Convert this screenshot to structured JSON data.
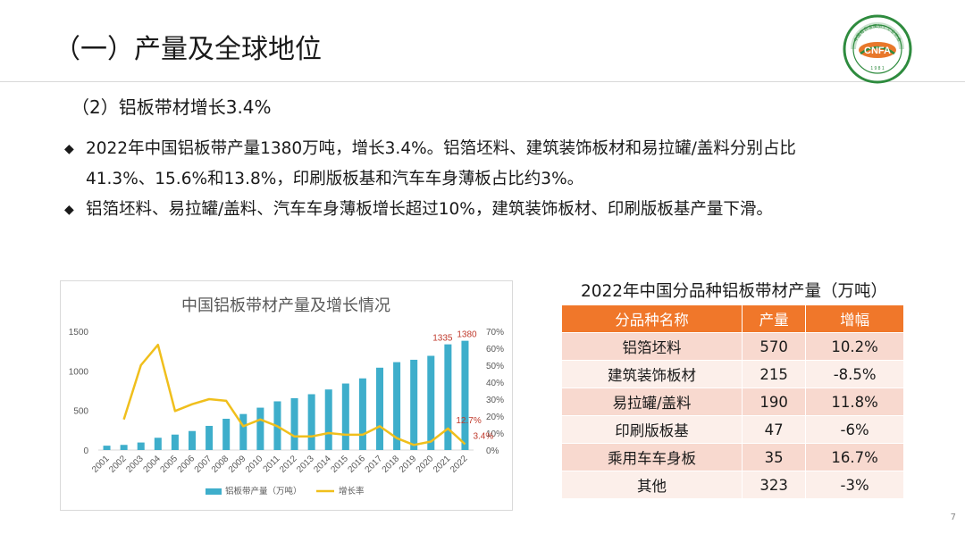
{
  "page": {
    "title": "（一）产量及全球地位",
    "subtitle": "（2）铝板带材增长3.4%",
    "page_number": "7",
    "logo": {
      "text_top": "中国有色金属加工工业协会",
      "text_center": "CNFA",
      "text_year": "1 9 8 1",
      "colors": {
        "green": "#2e8b3e",
        "orange": "#e8772a"
      }
    }
  },
  "bullets": [
    {
      "mark": "◆",
      "line1": "2022年中国铝板带产量1380万吨，增长3.4%。铝箔坯料、建筑装饰板材和易拉罐/盖料分别占比",
      "line2": "41.3%、15.6%和13.8%，印刷版板基和汽车车身薄板占比约3%。"
    },
    {
      "mark": "◆",
      "line1": "铝箔坯料、易拉罐/盖料、汽车车身薄板增长超过10%，建筑装饰板材、印刷版板基产量下滑。",
      "line2": ""
    }
  ],
  "chart_data": {
    "type": "bar",
    "title": "中国铝板带材产量及增长情况",
    "categories": [
      "2001",
      "2002",
      "2003",
      "2004",
      "2005",
      "2006",
      "2007",
      "2008",
      "2009",
      "2010",
      "2011",
      "2012",
      "2013",
      "2014",
      "2015",
      "2016",
      "2017",
      "2018",
      "2019",
      "2020",
      "2021",
      "2022"
    ],
    "series": [
      {
        "name": "铝板带产量（万吨）",
        "type": "bar",
        "axis": "left",
        "color": "#3eaecb",
        "values": [
          55,
          65,
          95,
          155,
          195,
          240,
          305,
          395,
          455,
          535,
          615,
          655,
          705,
          765,
          840,
          905,
          1040,
          1110,
          1140,
          1190,
          1335,
          1380
        ]
      },
      {
        "name": "增长率",
        "type": "line",
        "axis": "right",
        "color": "#f0bf1c",
        "values": [
          null,
          18,
          50,
          62,
          23,
          27,
          30,
          29,
          14,
          18,
          14,
          8,
          8,
          10,
          9,
          9,
          14,
          7,
          3,
          5,
          12.7,
          3.4
        ]
      }
    ],
    "ylim_left": [
      0,
      1500
    ],
    "yticks_left": [
      "0",
      "500",
      "1000",
      "1500"
    ],
    "ylim_right": [
      0,
      70
    ],
    "yticks_right": [
      "0%",
      "10%",
      "20%",
      "30%",
      "40%",
      "50%",
      "60%",
      "70%"
    ],
    "bar_labels": [
      {
        "index": 20,
        "text": "1335"
      },
      {
        "index": 21,
        "text": "1380"
      }
    ],
    "line_labels": [
      {
        "index": 20,
        "text": "12.7%"
      },
      {
        "index": 21,
        "text": "3.4%"
      }
    ],
    "label_color": "#c0392b",
    "legend": "bottom"
  },
  "table": {
    "title": "2022年中国分品种铝板带材产量（万吨）",
    "headers": [
      "分品种名称",
      "产量",
      "增幅"
    ],
    "rows": [
      [
        "铝箔坯料",
        "570",
        "10.2%"
      ],
      [
        "建筑装饰板材",
        "215",
        "-8.5%"
      ],
      [
        "易拉罐/盖料",
        "190",
        "11.8%"
      ],
      [
        "印刷版板基",
        "47",
        "-6%"
      ],
      [
        "乘用车车身板",
        "35",
        "16.7%"
      ],
      [
        "其他",
        "323",
        "-3%"
      ]
    ]
  }
}
